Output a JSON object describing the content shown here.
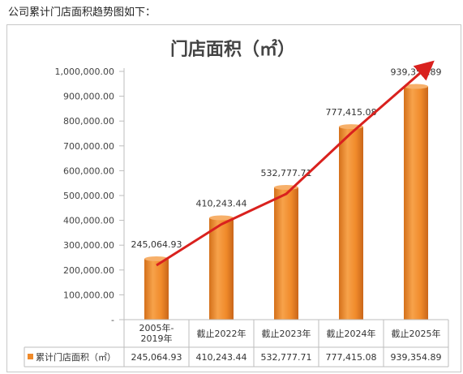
{
  "intro_text": "公司累计门店面积趋势图如下：",
  "chart_data": {
    "type": "bar",
    "title": "门店面积（㎡）",
    "categories": [
      "2005年-\n2019年",
      "截止2022年",
      "截止2023年",
      "截止2024年",
      "截止2025年"
    ],
    "category_lines": [
      [
        "2005年-",
        "2019年"
      ],
      [
        "截止2022年"
      ],
      [
        "截止2023年"
      ],
      [
        "截止2024年"
      ],
      [
        "截止2025年"
      ]
    ],
    "series": [
      {
        "name": "累计门店面积（㎡）",
        "values": [
          245064.93,
          410243.44,
          532777.71,
          777415.08,
          939354.89
        ]
      }
    ],
    "value_labels": [
      "245,064.93",
      "410,243.44",
      "532,777.71",
      "777,415.08",
      "939,354.89"
    ],
    "yticks": [
      "-",
      "100,000.00",
      "200,000.00",
      "300,000.00",
      "400,000.00",
      "500,000.00",
      "600,000.00",
      "700,000.00",
      "800,000.00",
      "900,000.00",
      "1,000,000.00"
    ],
    "ylim": [
      0,
      1000000
    ],
    "grid": false,
    "data_table": true,
    "colors": {
      "bar": "#f08a2a",
      "bar_light": "#f7b06a",
      "bar_dark": "#d4701a",
      "trend_arrow": "#d9211e"
    }
  }
}
